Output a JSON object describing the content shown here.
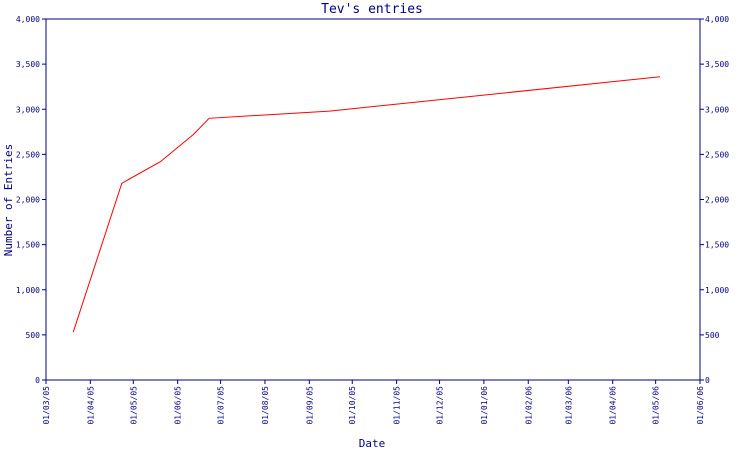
{
  "chart_data": {
    "type": "line",
    "title": "Tev's entries",
    "xlabel": "Date",
    "ylabel": "Number of Entries",
    "ylim": [
      0,
      4000
    ],
    "xlim": [
      "2005-03-01",
      "2006-06-01"
    ],
    "y_ticks": [
      0,
      500,
      1000,
      1500,
      2000,
      2500,
      3000,
      3500,
      4000
    ],
    "y_tick_labels": [
      "0",
      "500",
      "1,000",
      "1,500",
      "2,000",
      "2,500",
      "3,000",
      "3,500",
      "4,000"
    ],
    "x_ticks": [
      "2005-03-01",
      "2005-04-01",
      "2005-05-01",
      "2005-06-01",
      "2005-07-01",
      "2005-08-01",
      "2005-09-01",
      "2005-10-01",
      "2005-11-01",
      "2005-12-01",
      "2006-01-01",
      "2006-02-01",
      "2006-03-01",
      "2006-04-01",
      "2006-05-01",
      "2006-06-01"
    ],
    "x_tick_labels": [
      "01/03/05",
      "01/04/05",
      "01/05/05",
      "01/06/05",
      "01/07/05",
      "01/08/05",
      "01/09/05",
      "01/10/05",
      "01/11/05",
      "01/12/05",
      "01/01/06",
      "01/02/06",
      "01/03/06",
      "01/04/06",
      "01/05/06",
      "01/06/06"
    ],
    "grid": false,
    "series": [
      {
        "color": "#ff0000",
        "points": [
          {
            "x": "2005-03-20",
            "y": 530
          },
          {
            "x": "2005-04-23",
            "y": 2180
          },
          {
            "x": "2005-05-20",
            "y": 2420
          },
          {
            "x": "2005-06-12",
            "y": 2720
          },
          {
            "x": "2005-06-23",
            "y": 2900
          },
          {
            "x": "2005-09-15",
            "y": 2980
          },
          {
            "x": "2006-05-04",
            "y": 3360
          }
        ]
      }
    ]
  }
}
